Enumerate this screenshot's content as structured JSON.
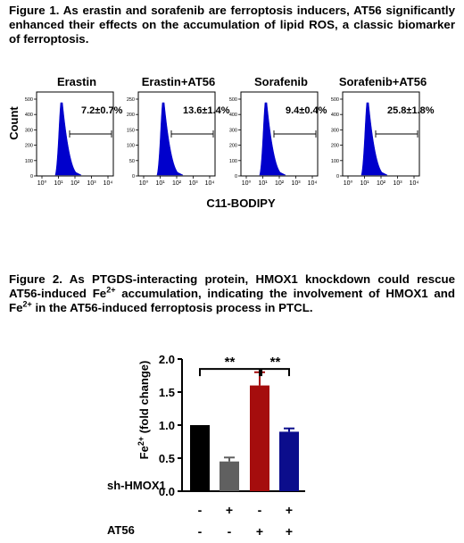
{
  "figure1": {
    "caption": "Figure 1. As erastin and sorafenib are ferroptosis inducers, AT56 significantly enhanced their effects on the accumulation of lipid ROS, a classic biomarker of ferroptosis.",
    "ylabel": "Count",
    "xlabel": "C11-BODIPY",
    "x_tick_labels": [
      "10⁰",
      "10¹",
      "10²",
      "10³",
      "10⁴"
    ],
    "panels": [
      {
        "title": "Erastin",
        "percent_label": "7.2±0.7%",
        "y_ticks": [
          0,
          100,
          200,
          300,
          400,
          500
        ],
        "y_max": 500
      },
      {
        "title": "Erastin+AT56",
        "percent_label": "13.6±1.4%",
        "y_ticks": [
          0,
          50,
          100,
          150,
          200,
          250
        ],
        "y_max": 250
      },
      {
        "title": "Sorafenib",
        "percent_label": "9.4±0.4%",
        "y_ticks": [
          0,
          100,
          200,
          300,
          400,
          500
        ],
        "y_max": 500
      },
      {
        "title": "Sorafenib+AT56",
        "percent_label": "25.8±1.8%",
        "y_ticks": [
          0,
          100,
          200,
          300,
          400,
          500
        ],
        "y_max": 500
      }
    ],
    "histogram_color": "#0000cc"
  },
  "figure2": {
    "caption_parts": {
      "p1": "Figure 2. As PTGDS-interacting protein, HMOX1 knockdown could rescue AT56-induced Fe",
      "sup1": "2+",
      "p2": " accumulation, indicating the involvement of HMOX1 and Fe",
      "sup2": "2+",
      "p3": " in the AT56-induced ferroptosis process in PTCL."
    },
    "row_labels": {
      "sh_hmox1": "sh-HMOX1",
      "at56": "AT56"
    },
    "sh_hmox1_signs": [
      "-",
      "+",
      "-",
      "+"
    ],
    "at56_signs": [
      "-",
      "-",
      "+",
      "+"
    ],
    "significance": [
      "**",
      "**"
    ]
  },
  "chart_data": {
    "type": "bar",
    "categories": [
      "sh-HMOX1 - / AT56 -",
      "sh-HMOX1 + / AT56 -",
      "sh-HMOX1 - / AT56 +",
      "sh-HMOX1 + / AT56 +"
    ],
    "values": [
      1.0,
      0.45,
      1.6,
      0.9
    ],
    "errors": [
      0.0,
      0.06,
      0.2,
      0.05
    ],
    "colors": [
      "#000000",
      "#606060",
      "#a50d0d",
      "#0b0d8c"
    ],
    "ylabel_parts": {
      "base": "Fe",
      "sup": "2+",
      "rest": " (fold change)"
    },
    "ylim": [
      0,
      2.0
    ],
    "y_ticks": [
      "0.0",
      "0.5",
      "1.0",
      "1.5",
      "2.0"
    ]
  }
}
